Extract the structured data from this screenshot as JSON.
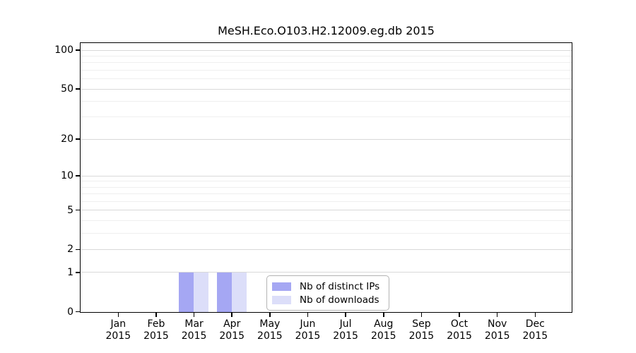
{
  "chart": {
    "title": "MeSH.Eco.O103.H2.12009.eg.db 2015"
  },
  "chart_data": {
    "type": "bar",
    "title": "MeSH.Eco.O103.H2.12009.eg.db 2015",
    "categories": [
      "Jan",
      "Feb",
      "Mar",
      "Apr",
      "May",
      "Jun",
      "Jul",
      "Aug",
      "Sep",
      "Oct",
      "Nov",
      "Dec"
    ],
    "category_year": "2015",
    "series": [
      {
        "name": "Nb of distinct IPs",
        "color": "#a5a7f3",
        "values": [
          0,
          0,
          1,
          1,
          0,
          0,
          0,
          0,
          0,
          0,
          0,
          0
        ]
      },
      {
        "name": "Nb of downloads",
        "color": "#dcdef9",
        "values": [
          0,
          0,
          1,
          1,
          0,
          0,
          0,
          0,
          0,
          0,
          0,
          0
        ]
      }
    ],
    "xlabel": "",
    "ylabel": "",
    "yscale": "log1p",
    "ylim": [
      0,
      113
    ],
    "yticks": [
      0,
      1,
      2,
      5,
      10,
      20,
      50,
      100
    ],
    "minor_gridline_values": [
      3,
      4,
      6,
      7,
      8,
      9,
      30,
      40,
      60,
      70,
      80,
      90
    ],
    "grid": true,
    "legend_position": "inside-bottom-center",
    "colors": {
      "axis": "#000000",
      "major_gridline": "#d9d9d9",
      "minor_gridline": "#efefef",
      "background": "#ffffff"
    }
  }
}
